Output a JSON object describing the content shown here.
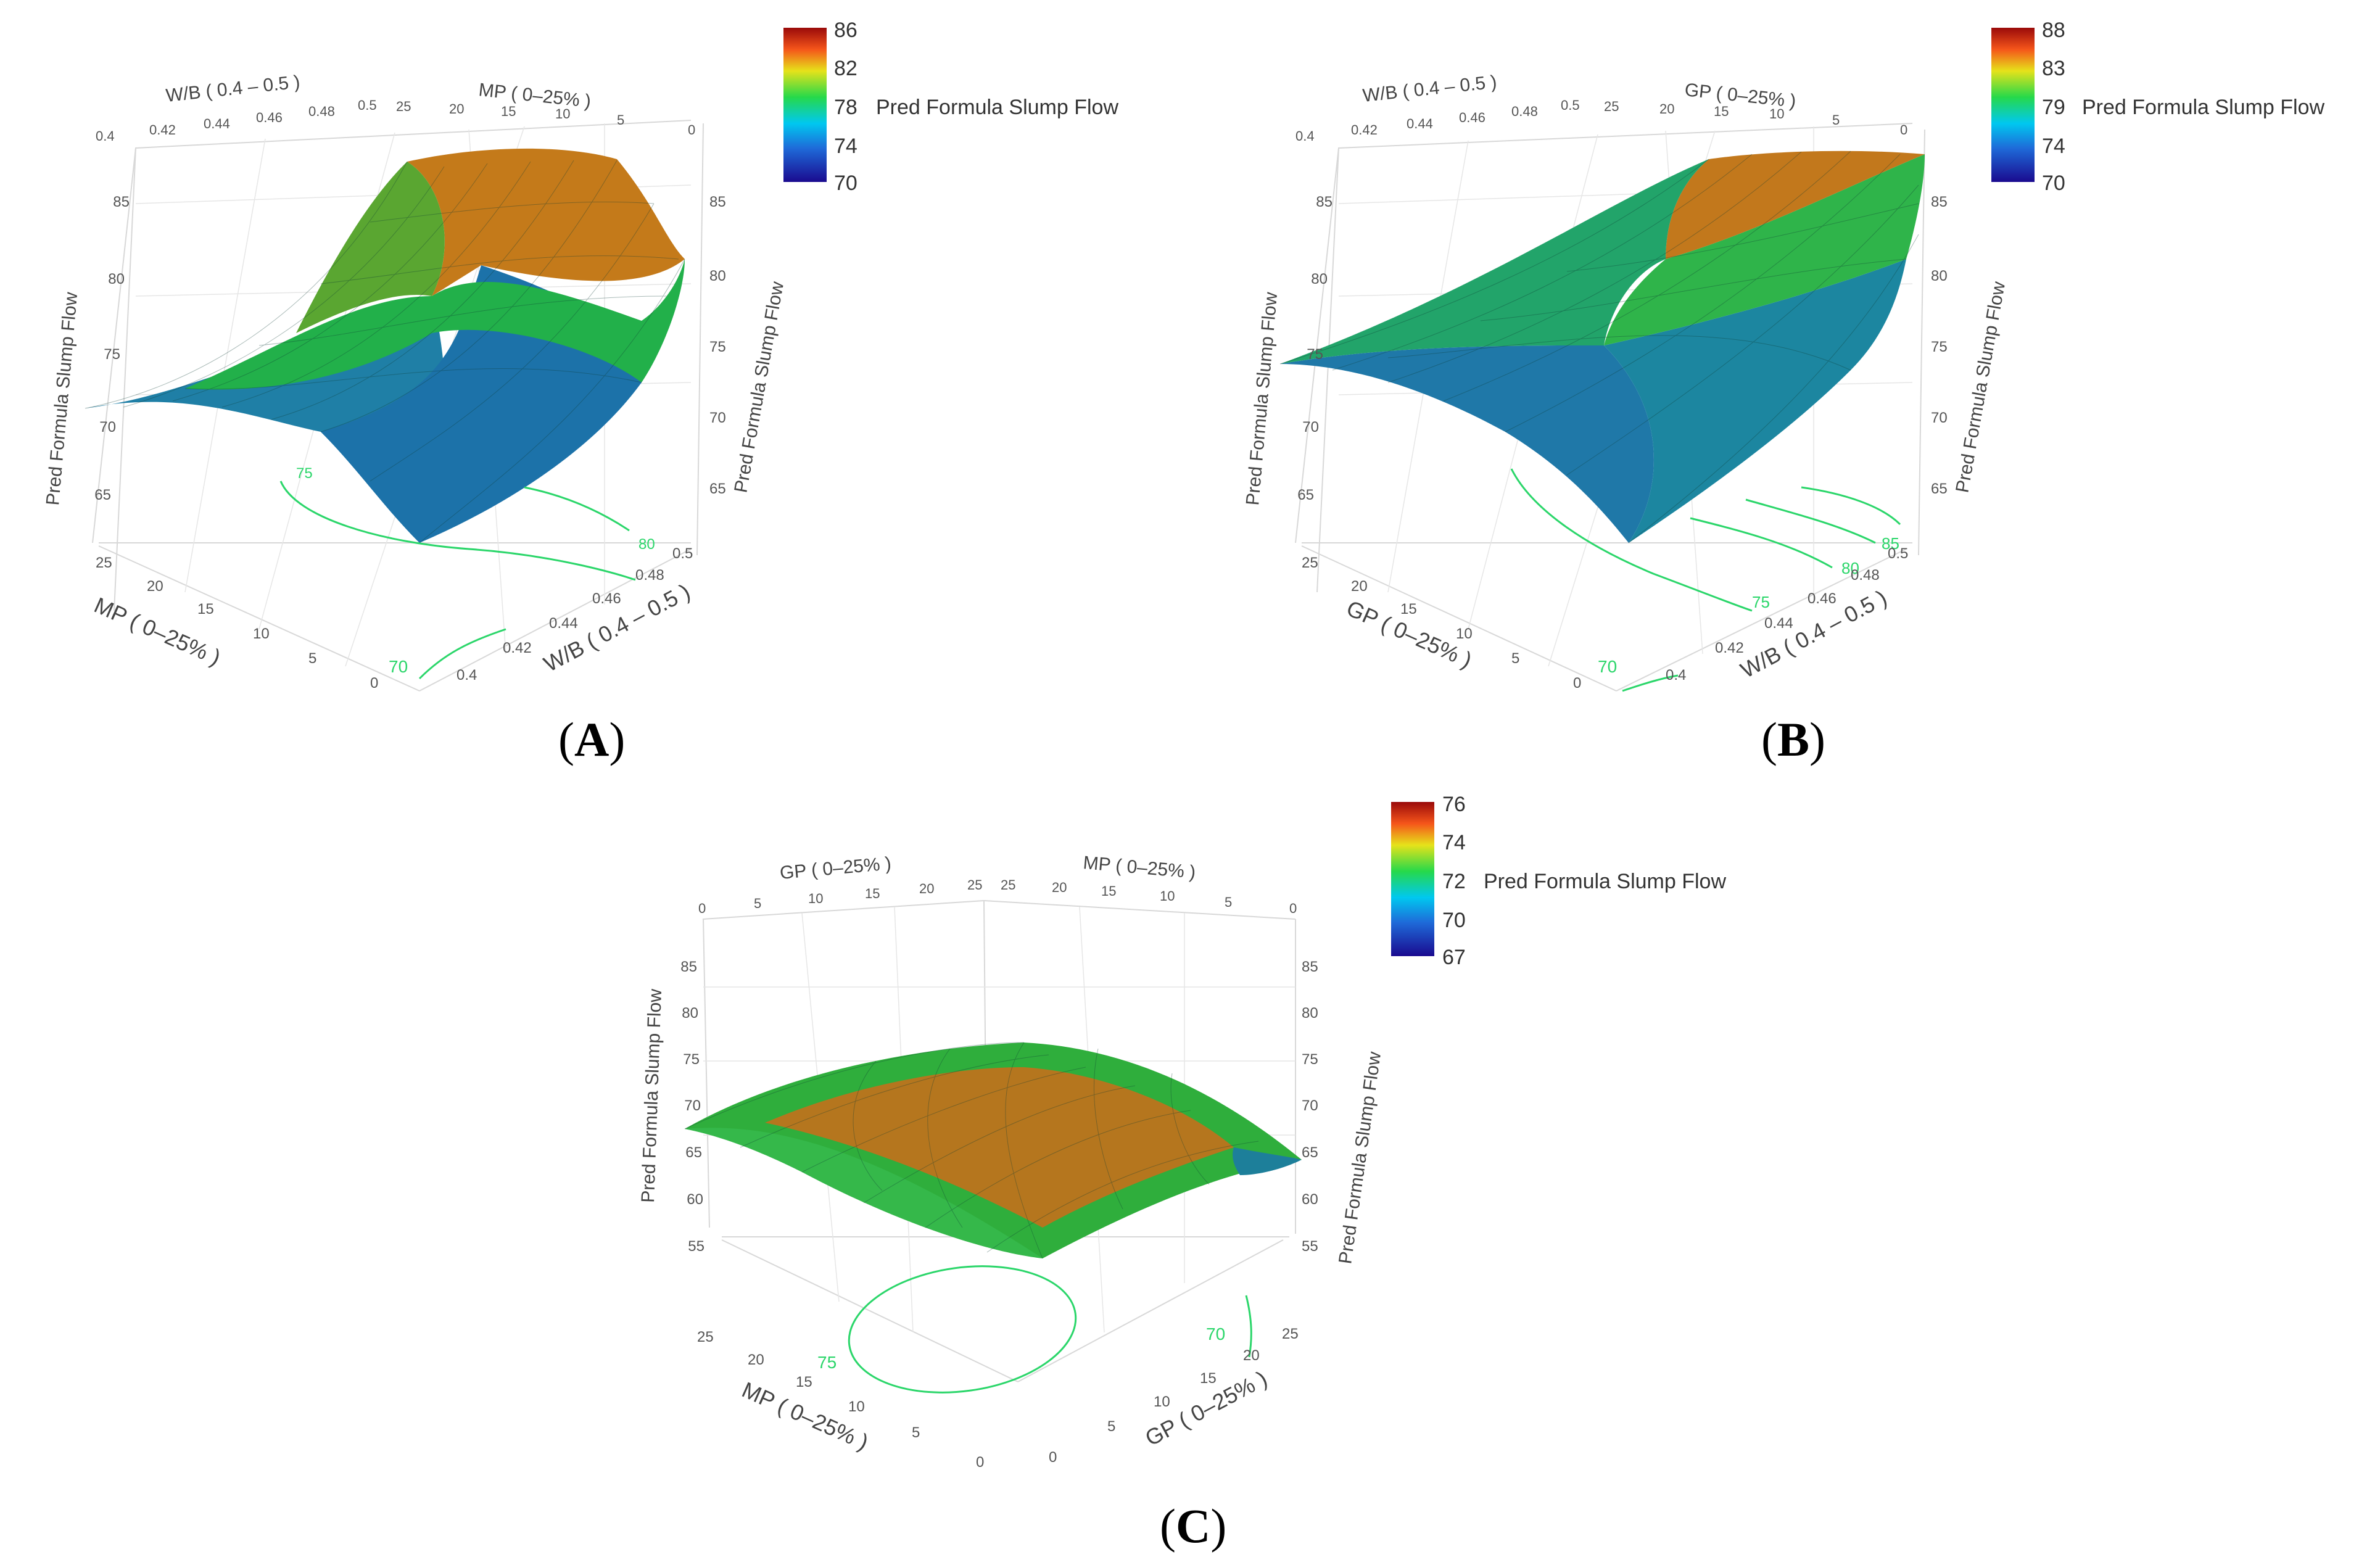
{
  "chart_data": [
    {
      "type": "surface3d",
      "panel": "A",
      "caption_letter": "A",
      "colorbar": {
        "label": "Pred Formula Slump Flow",
        "ticks": [
          "86",
          "82",
          "78",
          "74",
          "70"
        ],
        "range": [
          70,
          86
        ]
      },
      "z_axis": {
        "label": "Pred Formula Slump Flow",
        "ticks": [
          "85",
          "80",
          "75",
          "70",
          "65"
        ],
        "range": [
          62,
          88
        ]
      },
      "front_x": {
        "label": "MP ( 0–25% )",
        "ticks": [
          "25",
          "20",
          "15",
          "10",
          "5",
          "0"
        ]
      },
      "front_y": {
        "label": "W/B ( 0.4 – 0.5 )",
        "ticks": [
          "0.5",
          "0.48",
          "0.46",
          "0.44",
          "0.42",
          "0.4"
        ]
      },
      "back_x": {
        "label": "W/B ( 0.4 – 0.5 )",
        "ticks": [
          "0.4",
          "0.42",
          "0.44",
          "0.46",
          "0.48",
          "0.5"
        ]
      },
      "back_y": {
        "label": "MP ( 0–25% )",
        "ticks": [
          "25",
          "20",
          "15",
          "10",
          "5",
          "0"
        ]
      },
      "contours": [
        "75",
        "80",
        "70"
      ]
    },
    {
      "type": "surface3d",
      "panel": "B",
      "caption_letter": "B",
      "colorbar": {
        "label": "Pred Formula Slump Flow",
        "ticks": [
          "88",
          "83",
          "79",
          "74",
          "70"
        ],
        "range": [
          70,
          88
        ]
      },
      "z_axis": {
        "label": "Pred Formula Slump Flow",
        "ticks": [
          "85",
          "80",
          "75",
          "70",
          "65"
        ],
        "range": [
          62,
          88
        ]
      },
      "front_x": {
        "label": "GP ( 0–25% )",
        "ticks": [
          "25",
          "20",
          "15",
          "10",
          "5",
          "0"
        ]
      },
      "front_y": {
        "label": "W/B ( 0.4 – 0.5 )",
        "ticks": [
          "0.5",
          "0.48",
          "0.46",
          "0.44",
          "0.42",
          "0.4"
        ]
      },
      "back_x": {
        "label": "W/B ( 0.4 – 0.5 )",
        "ticks": [
          "0.4",
          "0.42",
          "0.44",
          "0.46",
          "0.48",
          "0.5"
        ]
      },
      "back_y": {
        "label": "GP ( 0–25% )",
        "ticks": [
          "25",
          "20",
          "15",
          "10",
          "5",
          "0"
        ]
      },
      "contours": [
        "85",
        "80",
        "75",
        "70"
      ]
    },
    {
      "type": "surface3d",
      "panel": "C",
      "caption_letter": "C",
      "colorbar": {
        "label": "Pred Formula Slump Flow",
        "ticks": [
          "76",
          "74",
          "72",
          "70",
          "67"
        ],
        "range": [
          67,
          76
        ]
      },
      "z_axis": {
        "label": "Pred Formula Slump Flow",
        "ticks": [
          "85",
          "80",
          "75",
          "70",
          "65",
          "60",
          "55"
        ],
        "range": [
          54,
          88
        ]
      },
      "front_x": {
        "label": "MP ( 0–25% )",
        "ticks": [
          "25",
          "20",
          "15",
          "10",
          "5",
          "0"
        ]
      },
      "front_y": {
        "label": "GP ( 0–25% )",
        "ticks": [
          "25",
          "20",
          "15",
          "10",
          "5",
          "0"
        ]
      },
      "back_x": {
        "label": "GP ( 0–25% )",
        "ticks": [
          "0",
          "5",
          "10",
          "15",
          "20",
          "25"
        ]
      },
      "back_y": {
        "label": "MP ( 0–25% )",
        "ticks": [
          "25",
          "20",
          "15",
          "10",
          "5",
          "0"
        ]
      },
      "contours": [
        "75",
        "70"
      ]
    }
  ]
}
